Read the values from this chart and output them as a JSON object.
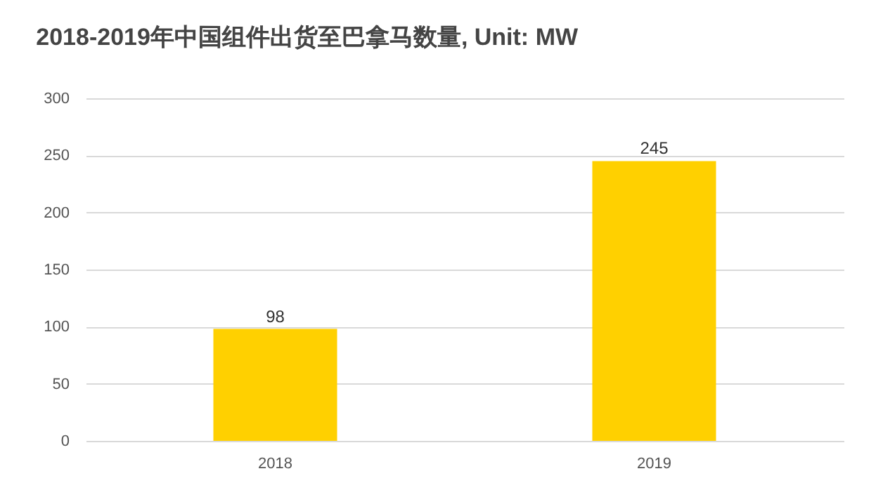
{
  "chart_data": {
    "type": "bar",
    "title": "2018-2019年中国组件出货至巴拿马数量, Unit: MW",
    "categories": [
      "2018",
      "2019"
    ],
    "values": [
      98,
      245
    ],
    "color": "#ffd000",
    "ylim": [
      0,
      300
    ],
    "yticks": [
      0,
      50,
      100,
      150,
      200,
      250,
      300
    ],
    "grid": "y",
    "data_labels": true
  }
}
